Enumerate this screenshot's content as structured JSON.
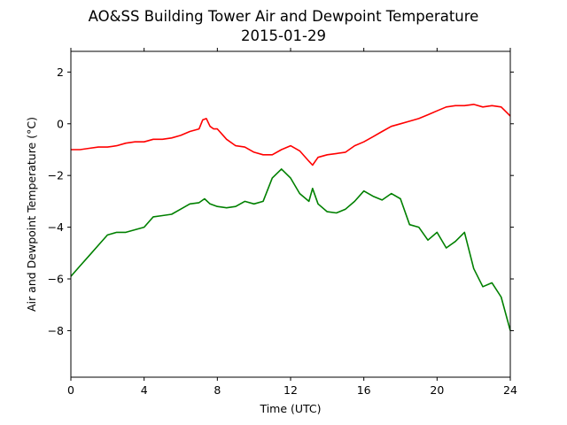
{
  "chart_data": {
    "type": "line",
    "title": "AO&SS Building Tower Air and Dewpoint Temperature",
    "subtitle": "2015-01-29",
    "xlabel": "Time (UTC)",
    "ylabel": "Air and Dewpoint Temperature (°C)",
    "xlim": [
      0,
      24
    ],
    "ylim": [
      -9.8,
      2.8
    ],
    "xticks": [
      0,
      4,
      8,
      12,
      16,
      20,
      24
    ],
    "yticks": [
      -8,
      -6,
      -4,
      -2,
      0,
      2
    ],
    "grid": false,
    "legend": "none",
    "series": [
      {
        "color": "#ff0000",
        "x": [
          0,
          0.5,
          1,
          1.5,
          2,
          2.5,
          3,
          3.5,
          4,
          4.5,
          5,
          5.5,
          6,
          6.5,
          7,
          7.2,
          7.4,
          7.6,
          7.8,
          8,
          8.5,
          9,
          9.5,
          10,
          10.5,
          11,
          11.5,
          12,
          12.5,
          13,
          13.2,
          13.5,
          14,
          14.5,
          15,
          15.5,
          16,
          16.5,
          17,
          17.5,
          18,
          18.5,
          19,
          19.5,
          20,
          20.5,
          21,
          21.5,
          22,
          22.5,
          23,
          23.5,
          24
        ],
        "values": [
          -1.0,
          -1.0,
          -0.95,
          -0.9,
          -0.9,
          -0.85,
          -0.75,
          -0.7,
          -0.7,
          -0.6,
          -0.6,
          -0.55,
          -0.45,
          -0.3,
          -0.2,
          0.15,
          0.2,
          -0.1,
          -0.2,
          -0.2,
          -0.6,
          -0.85,
          -0.9,
          -1.1,
          -1.2,
          -1.2,
          -1.0,
          -0.85,
          -1.05,
          -1.45,
          -1.6,
          -1.3,
          -1.2,
          -1.15,
          -1.1,
          -0.85,
          -0.7,
          -0.5,
          -0.3,
          -0.1,
          0.0,
          0.1,
          0.2,
          0.35,
          0.5,
          0.65,
          0.7,
          0.7,
          0.75,
          0.65,
          0.7,
          0.65,
          0.3
        ]
      },
      {
        "color": "#008000",
        "x": [
          0,
          0.5,
          1,
          1.5,
          2,
          2.5,
          3,
          3.5,
          4,
          4.5,
          5,
          5.5,
          6,
          6.5,
          7,
          7.3,
          7.6,
          8,
          8.5,
          9,
          9.5,
          10,
          10.5,
          11,
          11.5,
          12,
          12.5,
          13,
          13.2,
          13.5,
          14,
          14.5,
          15,
          15.5,
          16,
          16.5,
          17,
          17.5,
          18,
          18.5,
          19,
          19.5,
          20,
          20.5,
          21,
          21.5,
          22,
          22.5,
          23,
          23.5,
          24
        ],
        "values": [
          -5.9,
          -5.5,
          -5.1,
          -4.7,
          -4.3,
          -4.2,
          -4.2,
          -4.1,
          -4.0,
          -3.6,
          -3.55,
          -3.5,
          -3.3,
          -3.1,
          -3.05,
          -2.9,
          -3.1,
          -3.2,
          -3.25,
          -3.2,
          -3.0,
          -3.1,
          -3.0,
          -2.1,
          -1.75,
          -2.1,
          -2.7,
          -3.0,
          -2.5,
          -3.1,
          -3.4,
          -3.45,
          -3.3,
          -3.0,
          -2.6,
          -2.8,
          -2.95,
          -2.7,
          -2.9,
          -3.9,
          -4.0,
          -4.5,
          -4.2,
          -4.8,
          -4.55,
          -4.2,
          -5.6,
          -6.3,
          -6.15,
          -6.7,
          -8.0
        ]
      }
    ]
  }
}
